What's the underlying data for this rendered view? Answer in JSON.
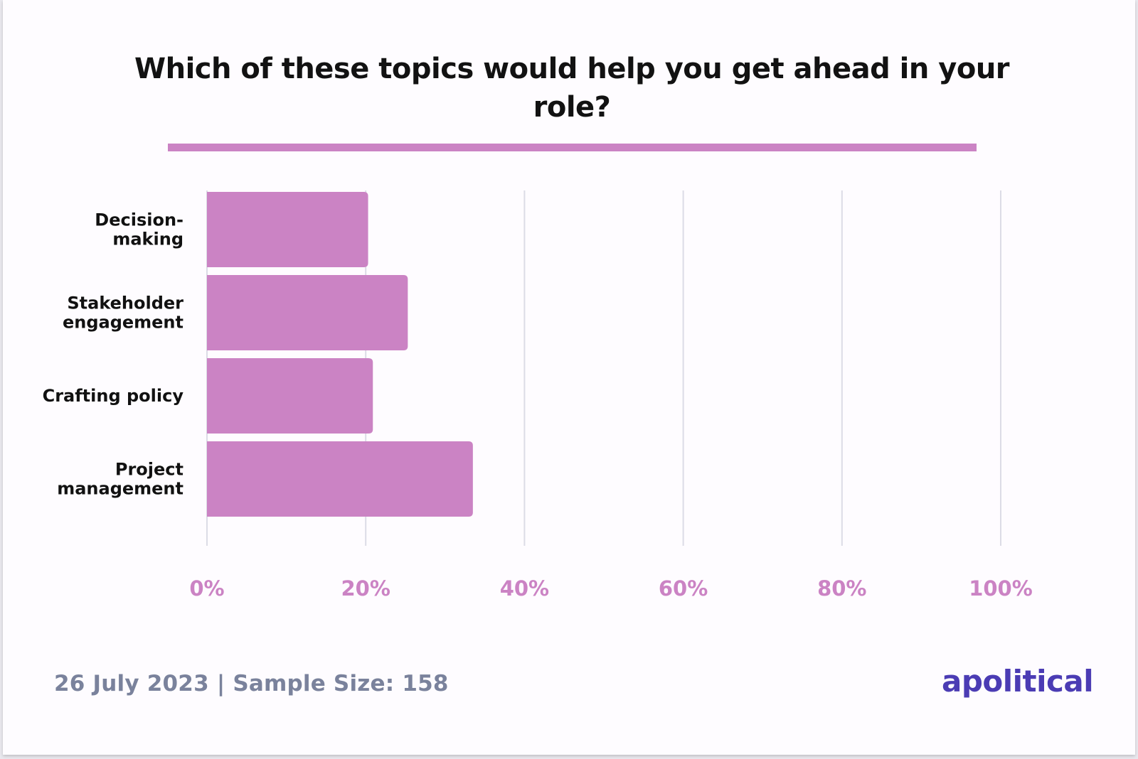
{
  "chart_data": {
    "type": "bar",
    "orientation": "horizontal",
    "title": "Which of these topics would help you get ahead in your role?",
    "categories": [
      [
        "Decision-",
        "making"
      ],
      [
        "Stakeholder",
        "engagement"
      ],
      [
        "Crafting policy"
      ],
      [
        "Project",
        "management"
      ]
    ],
    "values": [
      20.3,
      25.3,
      20.9,
      33.5
    ],
    "xlim": [
      0,
      100
    ],
    "xticks": [
      0,
      20,
      40,
      60,
      80,
      100
    ],
    "xtick_labels": [
      "0%",
      "20%",
      "40%",
      "60%",
      "80%",
      "100%"
    ],
    "grid": "vertical",
    "bar_color": "#cb83c4",
    "grid_color": "#dcdce6"
  },
  "footer": {
    "meta": "26 July 2023 | Sample Size: 158",
    "logo": "apolitical"
  },
  "colors": {
    "accent": "#cb83c4",
    "logo": "#4b3cb4",
    "muted_text": "#7a829c"
  }
}
